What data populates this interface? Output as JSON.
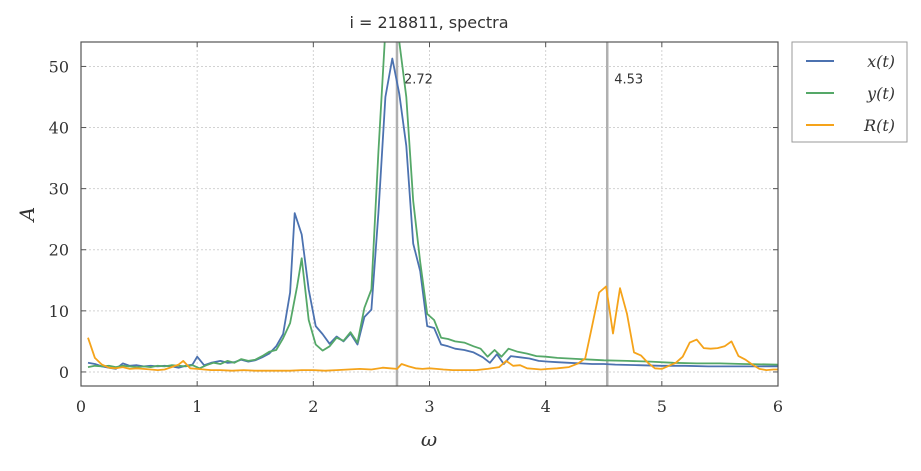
{
  "chart_data": {
    "type": "line",
    "title": "i = 218811, spectra",
    "xlabel": "ω",
    "ylabel": "A",
    "xlim": [
      0,
      6
    ],
    "ylim": [
      -2.3,
      54
    ],
    "xticks": [
      "0",
      "1",
      "2",
      "3",
      "4",
      "5",
      "6"
    ],
    "yticks": [
      "0",
      "10",
      "20",
      "30",
      "40",
      "50"
    ],
    "grid": true,
    "legend_position": "outside-top-right",
    "vlines": [
      {
        "x": 2.72,
        "label": "2.72"
      },
      {
        "x": 4.53,
        "label": "4.53"
      }
    ],
    "series": [
      {
        "name": "x(t)",
        "color": "#4c72b0",
        "points": [
          [
            0.06,
            1.5
          ],
          [
            0.12,
            1.3
          ],
          [
            0.18,
            0.9
          ],
          [
            0.24,
            0.7
          ],
          [
            0.3,
            0.5
          ],
          [
            0.36,
            1.4
          ],
          [
            0.42,
            1.0
          ],
          [
            0.48,
            1.1
          ],
          [
            0.54,
            0.9
          ],
          [
            0.6,
            1.0
          ],
          [
            0.66,
            0.9
          ],
          [
            0.72,
            1.0
          ],
          [
            0.78,
            0.9
          ],
          [
            0.84,
            0.7
          ],
          [
            0.9,
            1.0
          ],
          [
            0.96,
            1.2
          ],
          [
            1.0,
            2.5
          ],
          [
            1.06,
            1.1
          ],
          [
            1.12,
            1.5
          ],
          [
            1.2,
            1.8
          ],
          [
            1.26,
            1.5
          ],
          [
            1.32,
            1.6
          ],
          [
            1.38,
            2.0
          ],
          [
            1.44,
            1.7
          ],
          [
            1.5,
            1.9
          ],
          [
            1.56,
            2.4
          ],
          [
            1.62,
            3.0
          ],
          [
            1.68,
            4.2
          ],
          [
            1.74,
            6.2
          ],
          [
            1.8,
            13.0
          ],
          [
            1.84,
            26.0
          ],
          [
            1.9,
            22.5
          ],
          [
            1.96,
            13.5
          ],
          [
            2.02,
            7.5
          ],
          [
            2.08,
            6.2
          ],
          [
            2.14,
            4.6
          ],
          [
            2.2,
            5.8
          ],
          [
            2.26,
            5.0
          ],
          [
            2.32,
            6.3
          ],
          [
            2.38,
            4.5
          ],
          [
            2.44,
            9.0
          ],
          [
            2.5,
            10.2
          ],
          [
            2.56,
            26.0
          ],
          [
            2.62,
            45.0
          ],
          [
            2.68,
            51.3
          ],
          [
            2.74,
            45.5
          ],
          [
            2.8,
            37.0
          ],
          [
            2.86,
            21.0
          ],
          [
            2.92,
            16.5
          ],
          [
            2.98,
            7.5
          ],
          [
            3.04,
            7.2
          ],
          [
            3.1,
            4.5
          ],
          [
            3.16,
            4.2
          ],
          [
            3.22,
            3.8
          ],
          [
            3.3,
            3.6
          ],
          [
            3.38,
            3.2
          ],
          [
            3.46,
            2.4
          ],
          [
            3.52,
            1.5
          ],
          [
            3.58,
            2.9
          ],
          [
            3.64,
            1.3
          ],
          [
            3.7,
            2.6
          ],
          [
            3.78,
            2.4
          ],
          [
            3.86,
            2.2
          ],
          [
            3.94,
            1.8
          ],
          [
            4.02,
            1.7
          ],
          [
            4.1,
            1.6
          ],
          [
            4.2,
            1.5
          ],
          [
            4.3,
            1.4
          ],
          [
            4.4,
            1.3
          ],
          [
            4.5,
            1.3
          ],
          [
            4.6,
            1.2
          ],
          [
            4.8,
            1.1
          ],
          [
            5.0,
            1.0
          ],
          [
            5.2,
            1.0
          ],
          [
            5.4,
            0.9
          ],
          [
            5.6,
            0.9
          ],
          [
            5.8,
            0.9
          ],
          [
            6.0,
            0.9
          ]
        ]
      },
      {
        "name": "y(t)",
        "color": "#55a868",
        "points": [
          [
            0.06,
            0.8
          ],
          [
            0.12,
            1.0
          ],
          [
            0.18,
            0.9
          ],
          [
            0.24,
            1.0
          ],
          [
            0.3,
            0.8
          ],
          [
            0.36,
            1.0
          ],
          [
            0.42,
            0.9
          ],
          [
            0.48,
            0.8
          ],
          [
            0.54,
            0.9
          ],
          [
            0.6,
            0.8
          ],
          [
            0.66,
            1.0
          ],
          [
            0.72,
            0.9
          ],
          [
            0.78,
            1.1
          ],
          [
            0.84,
            1.0
          ],
          [
            0.9,
            0.9
          ],
          [
            0.96,
            1.1
          ],
          [
            1.02,
            0.6
          ],
          [
            1.08,
            1.1
          ],
          [
            1.14,
            1.5
          ],
          [
            1.2,
            1.3
          ],
          [
            1.26,
            1.8
          ],
          [
            1.32,
            1.5
          ],
          [
            1.38,
            2.1
          ],
          [
            1.44,
            1.8
          ],
          [
            1.5,
            2.0
          ],
          [
            1.56,
            2.6
          ],
          [
            1.62,
            3.3
          ],
          [
            1.68,
            3.6
          ],
          [
            1.74,
            5.5
          ],
          [
            1.8,
            8.0
          ],
          [
            1.86,
            14.0
          ],
          [
            1.9,
            18.6
          ],
          [
            1.96,
            8.5
          ],
          [
            2.02,
            4.5
          ],
          [
            2.08,
            3.5
          ],
          [
            2.14,
            4.2
          ],
          [
            2.2,
            5.6
          ],
          [
            2.26,
            5.1
          ],
          [
            2.32,
            6.5
          ],
          [
            2.38,
            4.8
          ],
          [
            2.44,
            10.5
          ],
          [
            2.5,
            13.5
          ],
          [
            2.56,
            36.0
          ],
          [
            2.62,
            56.0
          ],
          [
            2.68,
            57.0
          ],
          [
            2.74,
            54.0
          ],
          [
            2.8,
            45.0
          ],
          [
            2.86,
            28.0
          ],
          [
            2.92,
            18.0
          ],
          [
            2.98,
            9.5
          ],
          [
            3.04,
            8.5
          ],
          [
            3.1,
            5.6
          ],
          [
            3.16,
            5.4
          ],
          [
            3.22,
            5.0
          ],
          [
            3.3,
            4.8
          ],
          [
            3.38,
            4.2
          ],
          [
            3.44,
            3.8
          ],
          [
            3.5,
            2.5
          ],
          [
            3.56,
            3.6
          ],
          [
            3.62,
            2.5
          ],
          [
            3.68,
            3.8
          ],
          [
            3.76,
            3.3
          ],
          [
            3.84,
            3.0
          ],
          [
            3.92,
            2.6
          ],
          [
            4.0,
            2.5
          ],
          [
            4.1,
            2.3
          ],
          [
            4.2,
            2.2
          ],
          [
            4.3,
            2.1
          ],
          [
            4.4,
            2.0
          ],
          [
            4.5,
            1.9
          ],
          [
            4.7,
            1.8
          ],
          [
            4.9,
            1.7
          ],
          [
            5.1,
            1.5
          ],
          [
            5.3,
            1.4
          ],
          [
            5.5,
            1.4
          ],
          [
            5.7,
            1.3
          ],
          [
            6.0,
            1.2
          ]
        ]
      },
      {
        "name": "R(t)",
        "color": "#f5a31a",
        "points": [
          [
            0.06,
            5.6
          ],
          [
            0.12,
            2.3
          ],
          [
            0.18,
            1.2
          ],
          [
            0.24,
            0.7
          ],
          [
            0.3,
            0.6
          ],
          [
            0.36,
            0.8
          ],
          [
            0.42,
            0.5
          ],
          [
            0.48,
            0.6
          ],
          [
            0.54,
            0.5
          ],
          [
            0.6,
            0.4
          ],
          [
            0.66,
            0.3
          ],
          [
            0.72,
            0.4
          ],
          [
            0.78,
            0.8
          ],
          [
            0.84,
            1.2
          ],
          [
            0.88,
            1.8
          ],
          [
            0.94,
            0.6
          ],
          [
            1.0,
            0.5
          ],
          [
            1.06,
            0.4
          ],
          [
            1.12,
            0.3
          ],
          [
            1.2,
            0.3
          ],
          [
            1.3,
            0.2
          ],
          [
            1.4,
            0.3
          ],
          [
            1.5,
            0.2
          ],
          [
            1.6,
            0.2
          ],
          [
            1.7,
            0.2
          ],
          [
            1.8,
            0.2
          ],
          [
            1.9,
            0.3
          ],
          [
            2.0,
            0.3
          ],
          [
            2.1,
            0.2
          ],
          [
            2.2,
            0.3
          ],
          [
            2.3,
            0.4
          ],
          [
            2.4,
            0.5
          ],
          [
            2.5,
            0.4
          ],
          [
            2.6,
            0.7
          ],
          [
            2.66,
            0.6
          ],
          [
            2.72,
            0.5
          ],
          [
            2.76,
            1.3
          ],
          [
            2.82,
            0.9
          ],
          [
            2.88,
            0.6
          ],
          [
            2.94,
            0.5
          ],
          [
            3.0,
            0.6
          ],
          [
            3.06,
            0.5
          ],
          [
            3.12,
            0.4
          ],
          [
            3.2,
            0.3
          ],
          [
            3.3,
            0.3
          ],
          [
            3.4,
            0.3
          ],
          [
            3.5,
            0.5
          ],
          [
            3.6,
            0.8
          ],
          [
            3.66,
            1.8
          ],
          [
            3.72,
            1.0
          ],
          [
            3.78,
            1.1
          ],
          [
            3.84,
            0.6
          ],
          [
            3.9,
            0.5
          ],
          [
            3.96,
            0.4
          ],
          [
            4.02,
            0.5
          ],
          [
            4.1,
            0.6
          ],
          [
            4.2,
            0.8
          ],
          [
            4.28,
            1.4
          ],
          [
            4.34,
            2.2
          ],
          [
            4.4,
            7.5
          ],
          [
            4.46,
            13.0
          ],
          [
            4.52,
            14.0
          ],
          [
            4.58,
            6.3
          ],
          [
            4.64,
            13.7
          ],
          [
            4.7,
            9.5
          ],
          [
            4.76,
            3.2
          ],
          [
            4.82,
            2.7
          ],
          [
            4.88,
            1.5
          ],
          [
            4.94,
            0.6
          ],
          [
            5.0,
            0.5
          ],
          [
            5.06,
            1.0
          ],
          [
            5.12,
            1.5
          ],
          [
            5.18,
            2.5
          ],
          [
            5.24,
            4.8
          ],
          [
            5.3,
            5.3
          ],
          [
            5.36,
            3.9
          ],
          [
            5.42,
            3.8
          ],
          [
            5.48,
            3.9
          ],
          [
            5.54,
            4.2
          ],
          [
            5.6,
            5.0
          ],
          [
            5.66,
            2.6
          ],
          [
            5.72,
            2.0
          ],
          [
            5.78,
            1.2
          ],
          [
            5.84,
            0.5
          ],
          [
            5.9,
            0.3
          ],
          [
            5.96,
            0.4
          ],
          [
            6.0,
            0.4
          ]
        ]
      }
    ]
  }
}
